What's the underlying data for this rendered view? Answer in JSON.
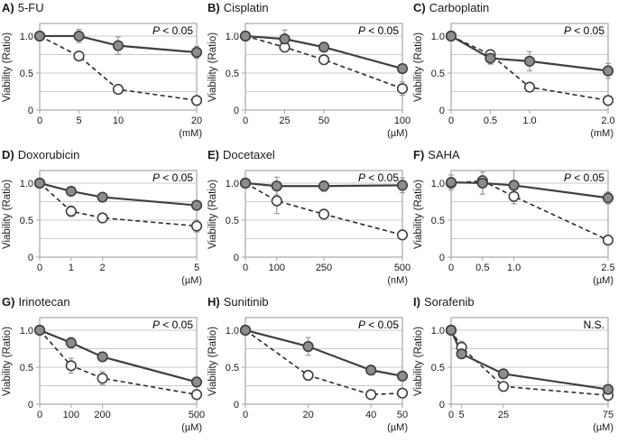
{
  "figure": {
    "ylabel": "Viability (Ratio)",
    "ylim": [
      0,
      1.17
    ],
    "y_ticks": [
      {
        "v": 0,
        "label": "0"
      },
      {
        "v": 0.5,
        "label": "0.5"
      },
      {
        "v": 1.0,
        "label": "1.0"
      }
    ],
    "gridlines": [
      0.25,
      0.5,
      0.75,
      1.0
    ],
    "colors": {
      "frame": "#a6a6a6",
      "grid": "#c9c9c9",
      "solid_line": "#3f3f3f",
      "dashed_line": "#2b2b2b",
      "marker_stroke": "#3f3f3f",
      "marker_filled_fill": "#8c8c8c",
      "marker_open_fill": "#ffffff",
      "error_bar": "#9a9a9a",
      "tick_text": "#1a1a1a"
    }
  },
  "chart_data": [
    {
      "type": "line",
      "panel_label": "A)",
      "title": "5-FU",
      "p_label": "P < 0.05",
      "x_unit": "(mM)",
      "x": [
        0,
        5,
        10,
        20
      ],
      "x_tick_labels": [
        "0",
        "5",
        "10",
        "20"
      ],
      "xlim": [
        0,
        20
      ],
      "ylim": [
        0,
        1.17
      ],
      "ylabel": "Viability (Ratio)",
      "series": [
        {
          "name": "filled-circle-solid",
          "marker": "filled",
          "line": "solid",
          "values": [
            1.0,
            1.0,
            0.87,
            0.78
          ],
          "errors": [
            0.03,
            0.09,
            0.12,
            0.08
          ]
        },
        {
          "name": "open-circle-dashed",
          "marker": "open",
          "line": "dashed",
          "values": [
            1.0,
            0.73,
            0.28,
            0.13
          ],
          "errors": [
            0.02,
            0.03,
            0.03,
            0.03
          ]
        }
      ]
    },
    {
      "type": "line",
      "panel_label": "B)",
      "title": "Cisplatin",
      "p_label": "P < 0.05",
      "x_unit": "(µM)",
      "x": [
        0,
        25,
        50,
        100
      ],
      "x_tick_labels": [
        "0",
        "25",
        "50",
        "100"
      ],
      "xlim": [
        0,
        100
      ],
      "ylim": [
        0,
        1.17
      ],
      "ylabel": "Viability (Ratio)",
      "series": [
        {
          "name": "filled-circle-solid",
          "marker": "filled",
          "line": "solid",
          "values": [
            1.0,
            0.96,
            0.85,
            0.56
          ],
          "errors": [
            0.03,
            0.12,
            0.04,
            0.05
          ]
        },
        {
          "name": "open-circle-dashed",
          "marker": "open",
          "line": "dashed",
          "values": [
            1.0,
            0.85,
            0.68,
            0.29
          ],
          "errors": [
            0.02,
            0.04,
            0.05,
            0.09
          ]
        }
      ]
    },
    {
      "type": "line",
      "panel_label": "C)",
      "title": "Carboplatin",
      "p_label": "P < 0.05",
      "x_unit": "(mM)",
      "x": [
        0,
        0.5,
        1.0,
        2.0
      ],
      "x_tick_labels": [
        "0",
        "0.5",
        "1.0",
        "2.0"
      ],
      "xlim": [
        0,
        2.0
      ],
      "ylim": [
        0,
        1.17
      ],
      "ylabel": "Viability (Ratio)",
      "series": [
        {
          "name": "filled-circle-solid",
          "marker": "filled",
          "line": "solid",
          "values": [
            1.0,
            0.7,
            0.66,
            0.53
          ],
          "errors": [
            0.03,
            0.08,
            0.13,
            0.1
          ]
        },
        {
          "name": "open-circle-dashed",
          "marker": "open",
          "line": "dashed",
          "values": [
            1.0,
            0.75,
            0.31,
            0.13
          ],
          "errors": [
            0.02,
            0.05,
            0.05,
            0.04
          ]
        }
      ]
    },
    {
      "type": "line",
      "panel_label": "D)",
      "title": "Doxorubicin",
      "p_label": "P < 0.05",
      "x_unit": "(µM)",
      "x": [
        0,
        1,
        2,
        5
      ],
      "x_tick_labels": [
        "0",
        "1",
        "2",
        "5"
      ],
      "xlim": [
        0,
        5
      ],
      "ylim": [
        0,
        1.17
      ],
      "ylabel": "Viability (Ratio)",
      "series": [
        {
          "name": "filled-circle-solid",
          "marker": "filled",
          "line": "solid",
          "values": [
            1.0,
            0.89,
            0.81,
            0.7
          ],
          "errors": [
            0.02,
            0.03,
            0.03,
            0.04
          ]
        },
        {
          "name": "open-circle-dashed",
          "marker": "open",
          "line": "dashed",
          "values": [
            1.0,
            0.62,
            0.53,
            0.42
          ],
          "errors": [
            0.02,
            0.07,
            0.04,
            0.08
          ]
        }
      ]
    },
    {
      "type": "line",
      "panel_label": "E)",
      "title": "Docetaxel",
      "p_label": "P < 0.05",
      "x_unit": "(nM)",
      "x": [
        0,
        100,
        250,
        500
      ],
      "x_tick_labels": [
        "0",
        "100",
        "250",
        "500"
      ],
      "xlim": [
        0,
        500
      ],
      "ylim": [
        0,
        1.17
      ],
      "ylabel": "Viability (Ratio)",
      "series": [
        {
          "name": "filled-circle-solid",
          "marker": "filled",
          "line": "solid",
          "values": [
            1.0,
            0.96,
            0.96,
            0.97
          ],
          "errors": [
            0.05,
            0.12,
            0.07,
            0.1
          ]
        },
        {
          "name": "open-circle-dashed",
          "marker": "open",
          "line": "dashed",
          "values": [
            1.0,
            0.76,
            0.58,
            0.3
          ],
          "errors": [
            0.03,
            0.17,
            0.05,
            0.05
          ]
        }
      ]
    },
    {
      "type": "line",
      "panel_label": "F)",
      "title": "SAHA",
      "p_label": "P < 0.05",
      "x_unit": "(µM)",
      "x": [
        0,
        0.5,
        1.0,
        2.5
      ],
      "x_tick_labels": [
        "0",
        "0.5",
        "1.0",
        "2.5"
      ],
      "xlim": [
        0,
        2.5
      ],
      "ylim": [
        0,
        1.17
      ],
      "ylabel": "Viability (Ratio)",
      "series": [
        {
          "name": "filled-circle-solid",
          "marker": "filled",
          "line": "solid",
          "values": [
            1.01,
            1.0,
            0.97,
            0.8
          ],
          "errors": [
            0.1,
            0.15,
            0.2,
            0.08
          ]
        },
        {
          "name": "open-circle-dashed",
          "marker": "open",
          "line": "dashed",
          "values": [
            1.0,
            1.03,
            0.82,
            0.23
          ],
          "errors": [
            0.04,
            0.07,
            0.1,
            0.04
          ]
        }
      ]
    },
    {
      "type": "line",
      "panel_label": "G)",
      "title": "Irinotecan",
      "p_label": "P < 0.05",
      "x_unit": "(µM)",
      "x": [
        0,
        100,
        200,
        500
      ],
      "x_tick_labels": [
        "0",
        "100",
        "200",
        "500"
      ],
      "xlim": [
        0,
        500
      ],
      "ylim": [
        0,
        1.17
      ],
      "ylabel": "Viability (Ratio)",
      "series": [
        {
          "name": "filled-circle-solid",
          "marker": "filled",
          "line": "solid",
          "values": [
            1.0,
            0.83,
            0.64,
            0.3
          ],
          "errors": [
            0.03,
            0.07,
            0.05,
            0.04
          ]
        },
        {
          "name": "open-circle-dashed",
          "marker": "open",
          "line": "dashed",
          "values": [
            1.0,
            0.52,
            0.35,
            0.13
          ],
          "errors": [
            0.02,
            0.1,
            0.09,
            0.05
          ]
        }
      ]
    },
    {
      "type": "line",
      "panel_label": "H)",
      "title": "Sunitinib",
      "p_label": "P < 0.05",
      "x_unit": "(µM)",
      "x": [
        0,
        20,
        40,
        50
      ],
      "x_tick_labels": [
        "0",
        "20",
        "40",
        "50"
      ],
      "xlim": [
        0,
        50
      ],
      "ylim": [
        0,
        1.17
      ],
      "ylabel": "Viability (Ratio)",
      "series": [
        {
          "name": "filled-circle-solid",
          "marker": "filled",
          "line": "solid",
          "values": [
            1.0,
            0.78,
            0.46,
            0.38
          ],
          "errors": [
            0.03,
            0.12,
            0.05,
            0.05
          ]
        },
        {
          "name": "open-circle-dashed",
          "marker": "open",
          "line": "dashed",
          "values": [
            1.0,
            0.39,
            0.13,
            0.15
          ],
          "errors": [
            0.02,
            0.05,
            0.04,
            0.05
          ]
        }
      ]
    },
    {
      "type": "line",
      "panel_label": "I)",
      "title": "Sorafenib",
      "p_label": "N.S.",
      "x_unit": "(µM)",
      "x": [
        0,
        5,
        25,
        75
      ],
      "x_tick_labels": [
        "0",
        "5",
        "25",
        "75"
      ],
      "xlim": [
        0,
        75
      ],
      "ylim": [
        0,
        1.17
      ],
      "ylabel": "Viability (Ratio)",
      "series": [
        {
          "name": "filled-circle-solid",
          "marker": "filled",
          "line": "solid",
          "values": [
            1.0,
            0.68,
            0.41,
            0.2
          ],
          "errors": [
            0.03,
            0.05,
            0.05,
            0.04
          ]
        },
        {
          "name": "open-circle-dashed",
          "marker": "open",
          "line": "dashed",
          "values": [
            1.0,
            0.77,
            0.24,
            0.12
          ],
          "errors": [
            0.02,
            0.08,
            0.04,
            0.04
          ]
        }
      ]
    }
  ]
}
